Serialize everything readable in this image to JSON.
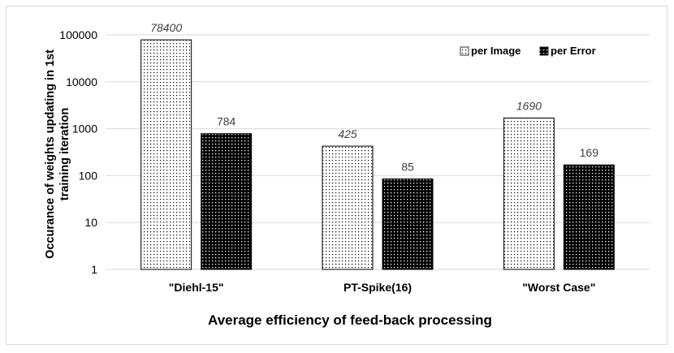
{
  "chart_data": {
    "type": "bar",
    "scale": "log",
    "title": "",
    "xlabel": "Average efficiency of feed-back processing",
    "ylabel_line1": "Occurance of weights updating in 1st",
    "ylabel_line2": "training iteration",
    "categories": [
      "\"Diehl-15\"",
      "PT-Spike(16)",
      "\"Worst Case\""
    ],
    "y_ticks": [
      1,
      10,
      100,
      1000,
      10000,
      100000
    ],
    "y_tick_labels": [
      "1",
      "10",
      "100",
      "1000",
      "10000",
      "100000"
    ],
    "ylim": [
      1,
      100000
    ],
    "grid": true,
    "legend_position": "top-right",
    "series": [
      {
        "name": "per Image",
        "values": [
          78400,
          425,
          1690
        ],
        "labels": [
          "78400",
          "425",
          "1690"
        ],
        "pattern": "dots-light",
        "label_style": "italic",
        "color": "#000000"
      },
      {
        "name": "per Error",
        "values": [
          784,
          85,
          169
        ],
        "labels": [
          "784",
          "85",
          "169"
        ],
        "pattern": "dots-dark",
        "label_style": "normal",
        "color": "#000000"
      }
    ],
    "colors": {
      "grid": "#d9d9d9",
      "axis_text": "#000000",
      "data_label": "#404040"
    }
  }
}
